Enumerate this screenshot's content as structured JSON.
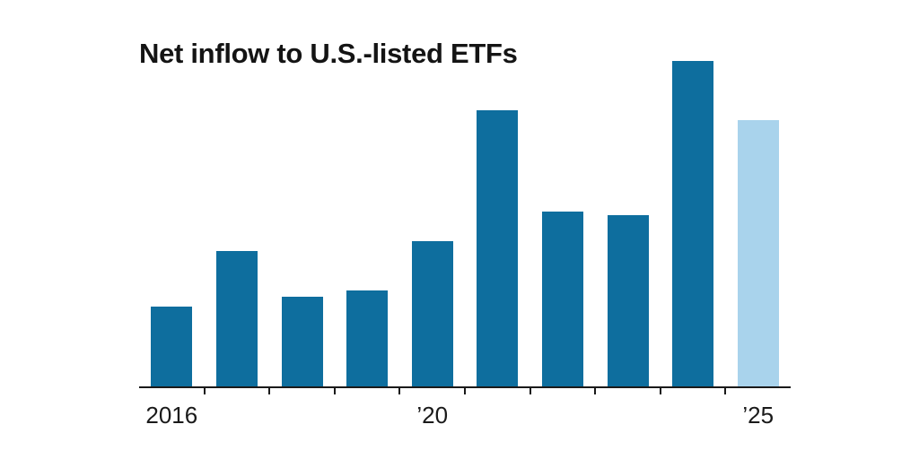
{
  "title": "Net inflow to U.S.-listed ETFs",
  "colors": {
    "background": "#ffffff",
    "bar_primary": "#0e6e9e",
    "bar_highlight": "#a9d3ec",
    "axis": "#1a1a1a",
    "text": "#141414"
  },
  "chart_data": {
    "type": "bar",
    "title": "Net inflow to U.S.-listed ETFs",
    "categories": [
      "2016",
      "2017",
      "2018",
      "2019",
      "2020",
      "2021",
      "2022",
      "2023",
      "2024",
      "2025"
    ],
    "values": [
      25,
      42,
      28,
      30,
      45,
      85,
      54,
      53,
      100,
      82
    ],
    "value_units": "relative bar height, percent of tallest bar (no y-axis or value labels shown)",
    "highlight_index": 9,
    "xlabel": "",
    "ylabel": "",
    "ylim": [
      0,
      100
    ],
    "grid": false,
    "legend": false,
    "x_tick_labels": [
      {
        "index": 0,
        "label": "2016"
      },
      {
        "index": 4,
        "label": "’20"
      },
      {
        "index": 9,
        "label": "’25"
      }
    ],
    "ticks_between_categories": true
  }
}
